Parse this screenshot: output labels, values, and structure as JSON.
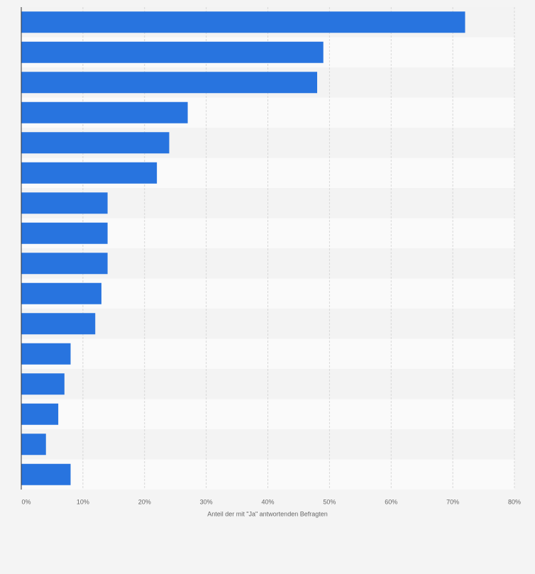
{
  "chart_data": {
    "type": "barh",
    "x_label": "Anteil der mit \"Ja\" antwortenden Befragten",
    "categories": [
      null,
      null,
      null,
      null,
      null,
      null,
      null,
      null,
      null,
      null,
      null,
      null,
      null,
      null,
      null,
      null
    ],
    "values": [
      72,
      49,
      48,
      27,
      24,
      22,
      14,
      14,
      14,
      13,
      12,
      8,
      7,
      6,
      4,
      8
    ],
    "color": "#2874df",
    "xlim": [
      0,
      80
    ],
    "xticks": [
      {
        "value": 0,
        "label": "0%"
      },
      {
        "value": 10,
        "label": "10%"
      },
      {
        "value": 20,
        "label": "20%"
      },
      {
        "value": 30,
        "label": "30%"
      },
      {
        "value": 40,
        "label": "40%"
      },
      {
        "value": 50,
        "label": "50%"
      },
      {
        "value": 60,
        "label": "60%"
      },
      {
        "value": 70,
        "label": "70%"
      },
      {
        "value": 80,
        "label": "80%"
      }
    ],
    "grid": true
  }
}
